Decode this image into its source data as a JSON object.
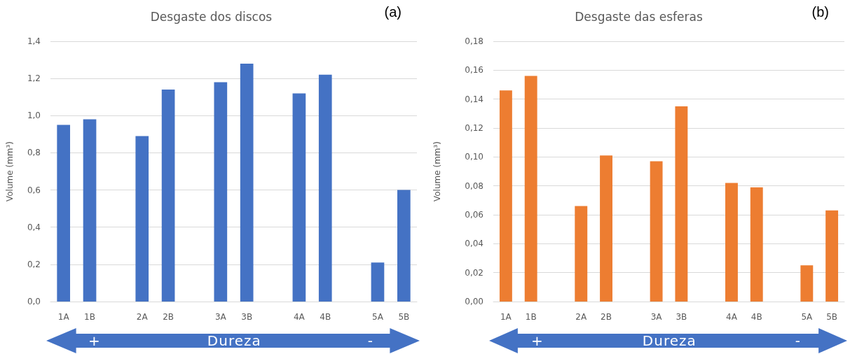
{
  "chart_data": [
    {
      "type": "bar",
      "title": "Desgaste dos discos",
      "ylabel": "Volume (mm³)",
      "categories": [
        "1A",
        "1B",
        null,
        "2A",
        "2B",
        null,
        "3A",
        "3B",
        null,
        "4A",
        "4B",
        null,
        "5A",
        "5B"
      ],
      "values": [
        0.95,
        0.98,
        null,
        0.89,
        1.14,
        null,
        1.18,
        1.28,
        null,
        1.12,
        1.22,
        null,
        0.21,
        0.6
      ],
      "color": "#4472c4",
      "ylim": [
        0,
        1.4
      ],
      "yticks": [
        {
          "value": 0,
          "label": "0,0"
        },
        {
          "value": 0.2,
          "label": "0,2"
        },
        {
          "value": 0.4,
          "label": "0,4"
        },
        {
          "value": 0.6,
          "label": "0,6"
        },
        {
          "value": 0.8,
          "label": "0,8"
        },
        {
          "value": 1.0,
          "label": "1,0"
        },
        {
          "value": 1.2,
          "label": "1,2"
        },
        {
          "value": 1.4,
          "label": "1,4"
        }
      ],
      "grid": "y",
      "annotations": [
        "(a)",
        "+",
        "Dureza",
        "-"
      ]
    },
    {
      "type": "bar",
      "title": "Desgaste das esferas",
      "ylabel": "Volume (mm³)",
      "categories": [
        "1A",
        "1B",
        null,
        "2A",
        "2B",
        null,
        "3A",
        "3B",
        null,
        "4A",
        "4B",
        null,
        "5A",
        "5B"
      ],
      "values": [
        0.146,
        0.156,
        null,
        0.066,
        0.101,
        null,
        0.097,
        0.135,
        null,
        0.082,
        0.079,
        null,
        0.025,
        0.063
      ],
      "color": "#ed7d31",
      "ylim": [
        0,
        0.18
      ],
      "yticks": [
        {
          "value": 0,
          "label": "0,00"
        },
        {
          "value": 0.02,
          "label": "0,02"
        },
        {
          "value": 0.04,
          "label": "0,04"
        },
        {
          "value": 0.06,
          "label": "0,06"
        },
        {
          "value": 0.08,
          "label": "0,08"
        },
        {
          "value": 0.1,
          "label": "0,10"
        },
        {
          "value": 0.12,
          "label": "0,12"
        },
        {
          "value": 0.14,
          "label": "0,14"
        },
        {
          "value": 0.16,
          "label": "0,16"
        },
        {
          "value": 0.18,
          "label": "0,18"
        }
      ],
      "grid": "y",
      "annotations": [
        "(b)",
        "+",
        "Dureza",
        "-"
      ]
    }
  ]
}
